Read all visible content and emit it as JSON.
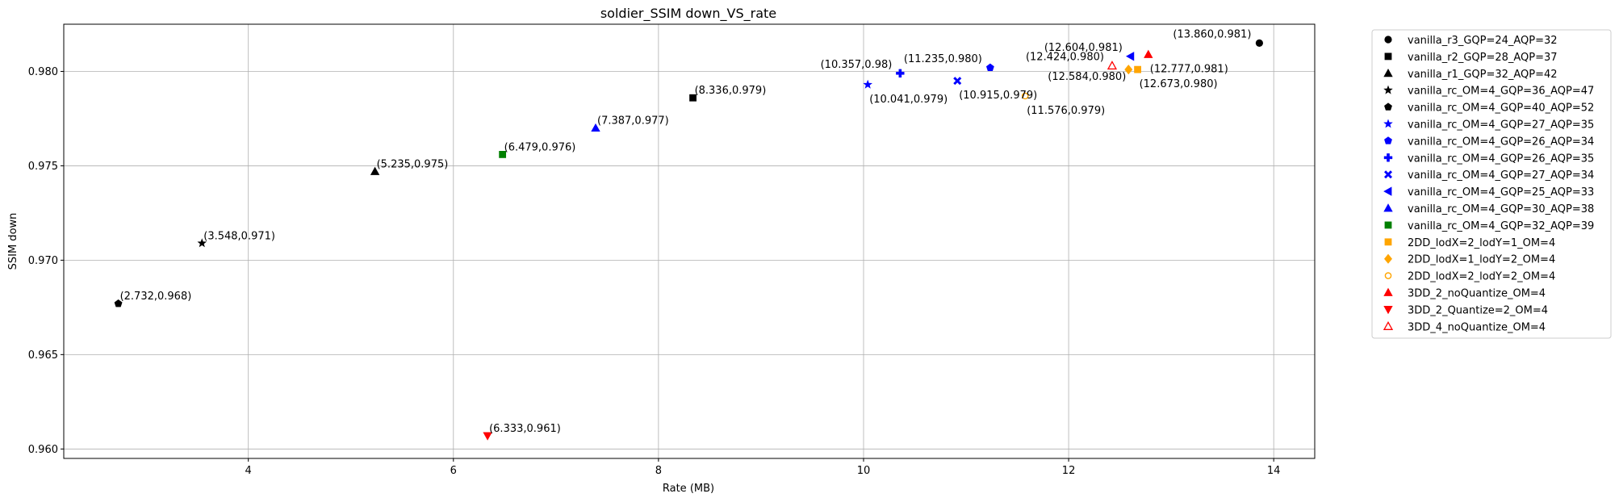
{
  "chart_data": {
    "type": "scatter",
    "title": "soldier_SSIM down_VS_rate",
    "xlabel": "Rate (MB)",
    "ylabel": "SSIM down",
    "xlim": [
      2.2,
      14.4
    ],
    "ylim": [
      0.9595,
      0.9825
    ],
    "xticks": [
      4,
      6,
      8,
      10,
      12,
      14
    ],
    "yticks": [
      0.96,
      0.965,
      0.97,
      0.975,
      0.98
    ],
    "xtick_labels": [
      "4",
      "6",
      "8",
      "10",
      "12",
      "14"
    ],
    "ytick_labels": [
      "0.960",
      "0.965",
      "0.970",
      "0.975",
      "0.980"
    ],
    "grid": true,
    "legend_position": "outside-right",
    "series": [
      {
        "name": "vanilla_r3_GQP=24_AQP=32",
        "marker": "circle",
        "color": "#000000",
        "filled": true,
        "x": 13.86,
        "y": 0.9815,
        "label": "(13.860,0.981)",
        "label_pos": "left"
      },
      {
        "name": "vanilla_r2_GQP=28_AQP=37",
        "marker": "square",
        "color": "#000000",
        "filled": true,
        "x": 8.336,
        "y": 0.9786,
        "label": "(8.336,0.979)",
        "label_pos": "right"
      },
      {
        "name": "vanilla_r1_GQP=32_AQP=42",
        "marker": "triangle-up",
        "color": "#000000",
        "filled": true,
        "x": 5.235,
        "y": 0.9747,
        "label": "(5.235,0.975)",
        "label_pos": "right"
      },
      {
        "name": "vanilla_rc_OM=4_GQP=36_AQP=47",
        "marker": "star",
        "color": "#000000",
        "filled": true,
        "x": 3.548,
        "y": 0.9709,
        "label": "(3.548,0.971)",
        "label_pos": "right"
      },
      {
        "name": "vanilla_rc_OM=4_GQP=40_AQP=52",
        "marker": "pentagon",
        "color": "#000000",
        "filled": true,
        "x": 2.732,
        "y": 0.9677,
        "label": "(2.732,0.968)",
        "label_pos": "right"
      },
      {
        "name": "vanilla_rc_OM=4_GQP=27_AQP=35",
        "marker": "star",
        "color": "#0000ff",
        "filled": true,
        "x": 10.041,
        "y": 0.9793,
        "label": "(10.041,0.979)",
        "label_pos": "below"
      },
      {
        "name": "vanilla_rc_OM=4_GQP=26_AQP=34",
        "marker": "pentagon",
        "color": "#0000ff",
        "filled": true,
        "x": 11.235,
        "y": 0.9802,
        "label": "(11.235,0.980)",
        "label_pos": "left"
      },
      {
        "name": "vanilla_rc_OM=4_GQP=26_AQP=35",
        "marker": "plus",
        "color": "#0000ff",
        "filled": true,
        "x": 10.357,
        "y": 0.9799,
        "label": "(10.357,0.98)",
        "label_pos": "left"
      },
      {
        "name": "vanilla_rc_OM=4_GQP=27_AQP=34",
        "marker": "x",
        "color": "#0000ff",
        "filled": true,
        "x": 10.915,
        "y": 0.9795,
        "label": "(10.915,0.979)",
        "label_pos": "below"
      },
      {
        "name": "vanilla_rc_OM=4_GQP=25_AQP=33",
        "marker": "triangle-left",
        "color": "#0000ff",
        "filled": true,
        "x": 12.604,
        "y": 0.9808,
        "label": "(12.604,0.981)",
        "label_pos": "left"
      },
      {
        "name": "vanilla_rc_OM=4_GQP=30_AQP=38",
        "marker": "triangle-up",
        "color": "#0000ff",
        "filled": true,
        "x": 7.387,
        "y": 0.977,
        "label": "(7.387,0.977)",
        "label_pos": "right"
      },
      {
        "name": "vanilla_rc_OM=4_GQP=32_AQP=39",
        "marker": "square",
        "color": "#008000",
        "filled": true,
        "x": 6.479,
        "y": 0.9756,
        "label": "(6.479,0.976)",
        "label_pos": "right"
      },
      {
        "name": "2DD_lodX=2_lodY=1_OM=4",
        "marker": "square",
        "color": "#ffa500",
        "filled": true,
        "x": 12.673,
        "y": 0.9801,
        "label": "(12.673,0.980)",
        "label_pos": "below"
      },
      {
        "name": "2DD_lodX=1_lodY=2_OM=4",
        "marker": "diamond",
        "color": "#ffa500",
        "filled": true,
        "x": 12.584,
        "y": 0.9801,
        "label": "(12.584,0.980)",
        "label_pos": "below-left"
      },
      {
        "name": "2DD_lodX=2_lodY=2_OM=4",
        "marker": "circle",
        "color": "#ffa500",
        "filled": false,
        "x": 11.576,
        "y": 0.9787,
        "label": "(11.576,0.979)",
        "label_pos": "below"
      },
      {
        "name": "3DD_2_noQuantize_OM=4",
        "marker": "triangle-up",
        "color": "#ff0000",
        "filled": true,
        "x": 12.777,
        "y": 0.9809,
        "label": "(12.777,0.981)",
        "label_pos": "below"
      },
      {
        "name": "3DD_2_Quantize=2_OM=4",
        "marker": "triangle-down",
        "color": "#ff0000",
        "filled": true,
        "x": 6.333,
        "y": 0.9607,
        "label": "(6.333,0.961)",
        "label_pos": "right"
      },
      {
        "name": "3DD_4_noQuantize_OM=4",
        "marker": "triangle-up",
        "color": "#ff0000",
        "filled": false,
        "x": 12.424,
        "y": 0.9803,
        "label": "(12.424,0.980)",
        "label_pos": "left"
      }
    ]
  }
}
